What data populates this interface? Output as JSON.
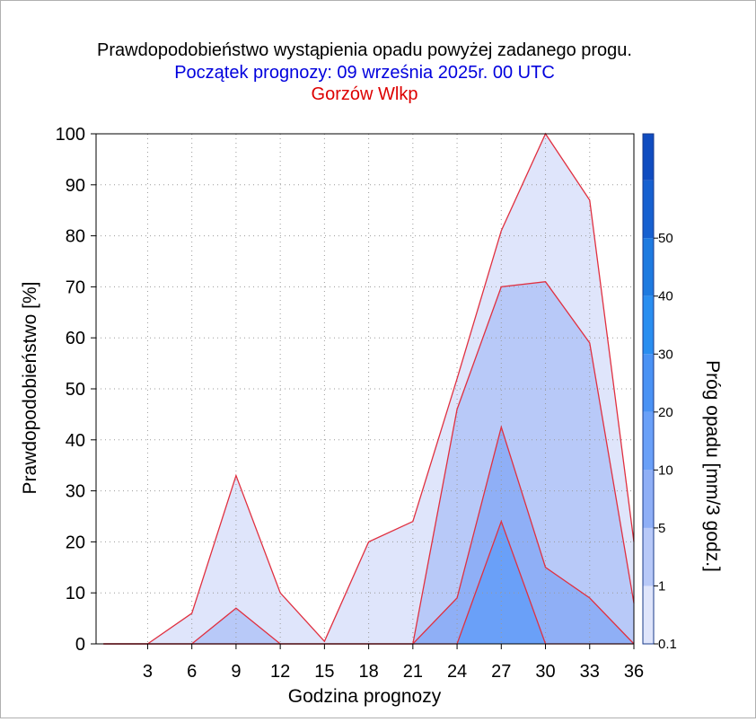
{
  "chart_data": {
    "type": "area",
    "title": "Prawdopodobieństwo wystąpienia opadu powyżej zadanego progu.",
    "subtitle": "Początek prognozy: 09 września 2025r. 00 UTC",
    "location": "Gorzów Wlkp",
    "title_color": "#000000",
    "subtitle_color": "#0000dd",
    "location_color": "#dd0000",
    "xlabel": "Godzina prognozy",
    "ylabel": "Prawdopodobieństwo [%]",
    "colorbar_label": "Próg opadu [mm/3 godz.]",
    "xlim": [
      -0.5,
      36
    ],
    "ylim": [
      0,
      100
    ],
    "x_ticks": [
      3,
      6,
      9,
      12,
      15,
      18,
      21,
      24,
      27,
      30,
      33,
      36
    ],
    "y_ticks": [
      0,
      10,
      20,
      30,
      40,
      50,
      60,
      70,
      80,
      90,
      100
    ],
    "grid": true,
    "x": [
      0,
      3,
      6,
      9,
      12,
      15,
      18,
      21,
      24,
      27,
      30,
      33,
      36
    ],
    "series": [
      {
        "name": "0.1",
        "color": "#dfe5fb",
        "values": [
          0,
          0,
          6,
          33,
          10,
          0.5,
          20,
          24,
          52,
          81,
          100,
          87,
          20
        ]
      },
      {
        "name": "1",
        "color": "#b8c9f8",
        "values": [
          0,
          0,
          0,
          7,
          0,
          0,
          0,
          0,
          46,
          70,
          71,
          59,
          8
        ]
      },
      {
        "name": "5",
        "color": "#8faff6",
        "values": [
          0,
          0,
          0,
          0,
          0,
          0,
          0,
          0,
          9,
          42.5,
          15,
          9,
          0
        ]
      },
      {
        "name": "10",
        "color": "#6aa0f8",
        "values": [
          0,
          0,
          0,
          0,
          0,
          0,
          0,
          0,
          0,
          24,
          0,
          0,
          0
        ]
      }
    ],
    "line_color": "#e03040",
    "colorbar": {
      "tick_labels": [
        "0.1",
        "1",
        "5",
        "10",
        "20",
        "30",
        "40",
        "50"
      ],
      "colors": [
        "#dfe5fb",
        "#b8c9f8",
        "#8faff6",
        "#6aa0f8",
        "#4a92f4",
        "#2a8ef0",
        "#1e7ae0",
        "#1660d0",
        "#0f4cc0"
      ]
    }
  }
}
